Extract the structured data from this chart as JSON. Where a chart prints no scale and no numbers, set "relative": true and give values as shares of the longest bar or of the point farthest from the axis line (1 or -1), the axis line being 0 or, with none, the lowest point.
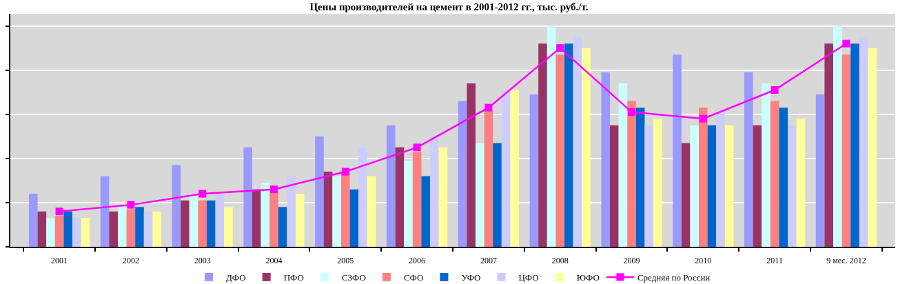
{
  "chart_data": {
    "type": "bar",
    "title": "Цены производителей на цемент в 2001-2012 гг., тыс. руб./т.",
    "categories": [
      "2001",
      "2002",
      "2003",
      "2004",
      "2005",
      "2006",
      "2007",
      "2008",
      "2009",
      "2010",
      "2011",
      "9 мес. 2012"
    ],
    "relative": true,
    "grid": "y",
    "legend": "bottom",
    "marker": "square",
    "line_style": "solid",
    "series": [
      {
        "name": "ДФО",
        "color": "#9999ff",
        "values": [
          0.24,
          0.32,
          0.37,
          0.45,
          0.5,
          0.55,
          0.66,
          0.69,
          0.79,
          0.87,
          0.79,
          0.69
        ]
      },
      {
        "name": "ПФО",
        "color": "#993366",
        "values": [
          0.16,
          0.16,
          0.21,
          0.26,
          0.34,
          0.45,
          0.74,
          0.92,
          0.55,
          0.47,
          0.55,
          0.92
        ]
      },
      {
        "name": "СЗФО",
        "color": "#ccffff",
        "values": [
          0.13,
          0.18,
          0.24,
          0.29,
          0.32,
          0.39,
          0.47,
          1.0,
          0.74,
          0.55,
          0.74,
          1.0
        ]
      },
      {
        "name": "СФО",
        "color": "#ff8080",
        "values": [
          0.14,
          0.17,
          0.21,
          0.25,
          0.33,
          0.43,
          0.62,
          0.87,
          0.66,
          0.63,
          0.66,
          0.87
        ]
      },
      {
        "name": "УФО",
        "color": "#0066cc",
        "values": [
          0.16,
          0.18,
          0.21,
          0.18,
          0.26,
          0.32,
          0.47,
          0.92,
          0.63,
          0.55,
          0.63,
          0.92
        ]
      },
      {
        "name": "ЦФО",
        "color": "#ccccff",
        "values": [
          0.13,
          0.16,
          0.24,
          0.32,
          0.45,
          0.5,
          0.71,
          0.95,
          0.55,
          0.61,
          0.55,
          0.95
        ]
      },
      {
        "name": "ЮФО",
        "color": "#ffff99",
        "values": [
          0.13,
          0.16,
          0.18,
          0.24,
          0.32,
          0.45,
          0.71,
          0.9,
          0.58,
          0.55,
          0.58,
          0.9
        ]
      },
      {
        "name": "Средняя по России",
        "type": "line",
        "color": "#ff00ff",
        "values": [
          0.16,
          0.19,
          0.24,
          0.26,
          0.34,
          0.45,
          0.63,
          0.9,
          0.61,
          0.58,
          0.71,
          0.92
        ]
      }
    ]
  }
}
